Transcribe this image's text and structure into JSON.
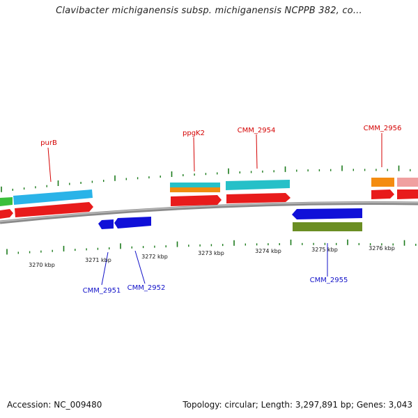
{
  "title": "Clavibacter michiganensis subsp. michiganensis NCPPB 382, co...",
  "footer": {
    "accession": "Accession: NC_009480",
    "summary": "Topology: circular; Length: 3,297,891 bp; Genes: 3,043"
  },
  "colors": {
    "forward_label": "#d40000",
    "reverse_label": "#1010c8",
    "tick": "#1a7a1a",
    "backbone": "#888888"
  },
  "scale_labels": [
    "3270 kbp",
    "3271 kbp",
    "3272 kbp",
    "3273 kbp",
    "3274 kbp",
    "3275 kbp",
    "3276 kbp"
  ],
  "gene_labels": {
    "purB": "purB",
    "ppgK2": "ppgK2",
    "cmm2954": "CMM_2954",
    "cmm2956": "CMM_2956",
    "cmm2951": "CMM_2951",
    "cmm2952": "CMM_2952",
    "cmm2955": "CMM_2955"
  }
}
